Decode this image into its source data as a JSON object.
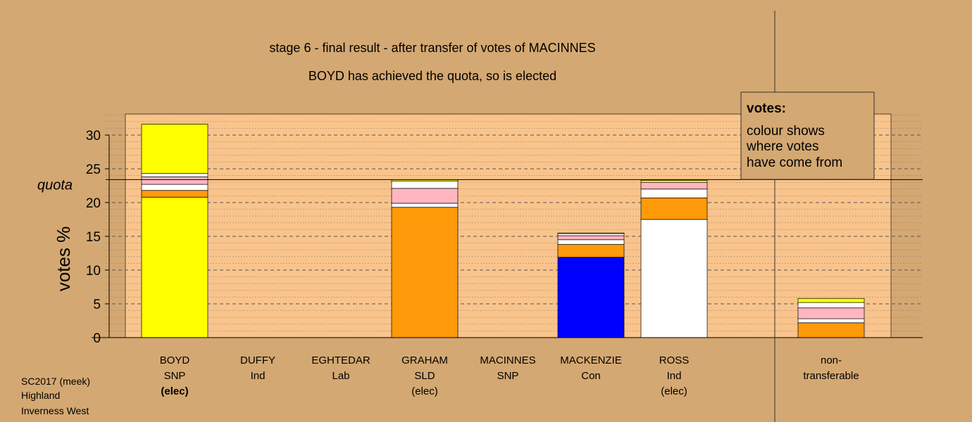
{
  "titles": {
    "line1": "stage 6 - final result - after transfer of votes of MACINNES",
    "line2": "BOYD has achieved the quota, so is elected"
  },
  "legend": {
    "title": "votes:",
    "lines": [
      "colour shows",
      "where votes",
      "have come from"
    ]
  },
  "footer": [
    "SC2017 (meek)",
    "Highland",
    "Inverness West"
  ],
  "colors": {
    "background": "#d4a872",
    "plot_area": "#f9c48c",
    "snp": "#ffff00",
    "sld": "#ff9a0a",
    "con": "#0000ff",
    "ind": "#ffffff",
    "lab": "#ffb6c1"
  },
  "chart_data": {
    "type": "bar",
    "stacked": true,
    "ylabel": "votes %",
    "ylim": [
      0,
      33
    ],
    "yticks": [
      0,
      5,
      10,
      15,
      20,
      25,
      30
    ],
    "quota": 23.4,
    "quota_label": "quota",
    "grid": true,
    "categories": [
      {
        "name": "BOYD",
        "party": "SNP",
        "status": "(elec)",
        "bold_status": true
      },
      {
        "name": "DUFFY",
        "party": "Ind",
        "status": ""
      },
      {
        "name": "EGHTEDAR",
        "party": "Lab",
        "status": ""
      },
      {
        "name": "GRAHAM",
        "party": "SLD",
        "status": "(elec)"
      },
      {
        "name": "MACINNES",
        "party": "SNP",
        "status": ""
      },
      {
        "name": "MACKENZIE",
        "party": "Con",
        "status": ""
      },
      {
        "name": "ROSS",
        "party": "Ind",
        "status": "(elec)"
      },
      {
        "name": "non-",
        "party": "transferable",
        "status": ""
      }
    ],
    "bars": [
      {
        "segments": [
          {
            "value": 20.8,
            "color": "#ffff00"
          },
          {
            "value": 1.0,
            "color": "#ff9a0a"
          },
          {
            "value": 0.9,
            "color": "#ffffff"
          },
          {
            "value": 1.1,
            "color": "#ffb6c1"
          },
          {
            "value": 0.5,
            "color": "#ffffff"
          },
          {
            "value": 7.3,
            "color": "#ffff00"
          }
        ]
      },
      {
        "segments": []
      },
      {
        "segments": []
      },
      {
        "segments": [
          {
            "value": 19.3,
            "color": "#ff9a0a"
          },
          {
            "value": 0.6,
            "color": "#ffffff"
          },
          {
            "value": 2.2,
            "color": "#ffb6c1"
          },
          {
            "value": 1.1,
            "color": "#ffffff"
          },
          {
            "value": 0.2,
            "color": "#ffff00"
          }
        ]
      },
      {
        "segments": []
      },
      {
        "segments": [
          {
            "value": 11.9,
            "color": "#0000ff"
          },
          {
            "value": 1.9,
            "color": "#ff9a0a"
          },
          {
            "value": 0.7,
            "color": "#ffffff"
          },
          {
            "value": 0.6,
            "color": "#ffb6c1"
          },
          {
            "value": 0.3,
            "color": "#ffffff"
          },
          {
            "value": 0.1,
            "color": "#ffff00"
          }
        ]
      },
      {
        "segments": [
          {
            "value": 17.5,
            "color": "#ffffff"
          },
          {
            "value": 3.2,
            "color": "#ff9a0a"
          },
          {
            "value": 1.3,
            "color": "#ffffff"
          },
          {
            "value": 1.0,
            "color": "#ffb6c1"
          },
          {
            "value": 0.3,
            "color": "#ffff00"
          }
        ]
      },
      {
        "segments": [
          {
            "value": 2.2,
            "color": "#ff9a0a"
          },
          {
            "value": 0.6,
            "color": "#ffffff"
          },
          {
            "value": 1.6,
            "color": "#ffb6c1"
          },
          {
            "value": 0.8,
            "color": "#ffffff"
          },
          {
            "value": 0.6,
            "color": "#ffff00"
          }
        ]
      }
    ]
  }
}
